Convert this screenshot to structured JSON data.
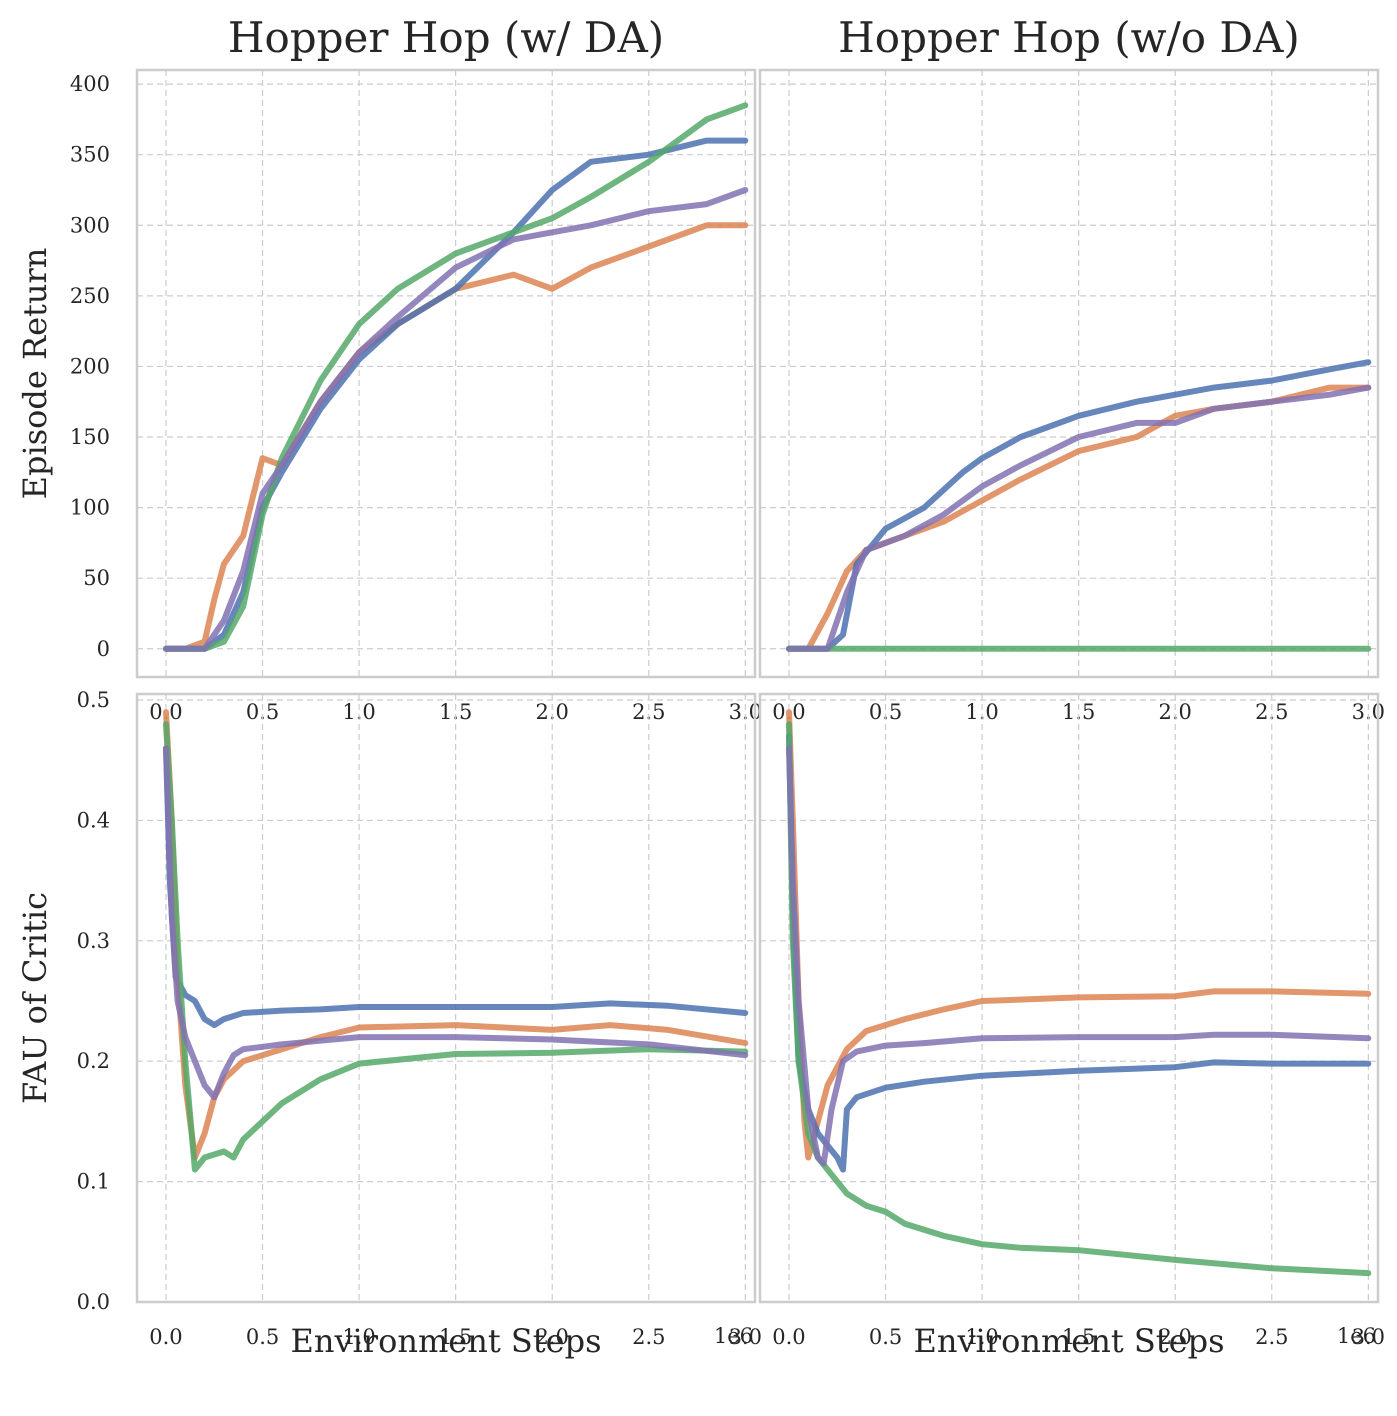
{
  "chart_data": [
    {
      "type": "line",
      "title": "Hopper Hop (w/ DA)",
      "ylabel": "Episode Return",
      "xlabel": "",
      "xlim": [
        -0.15,
        3.05
      ],
      "ylim": [
        -20,
        410
      ],
      "xticks": [
        0.0,
        0.5,
        1.0,
        1.5,
        2.0,
        2.5,
        3.0
      ],
      "xtick_labels": [
        "0.0",
        "0.5",
        "1.0",
        "1.5",
        "2.0",
        "2.5",
        "3.0"
      ],
      "yticks": [
        0,
        50,
        100,
        150,
        200,
        250,
        300,
        350,
        400
      ],
      "ytick_labels": [
        "0",
        "50",
        "100",
        "150",
        "200",
        "250",
        "300",
        "350",
        "400"
      ],
      "grid": true,
      "series": [
        {
          "color": "#dd8452",
          "x": [
            0,
            0.1,
            0.2,
            0.25,
            0.3,
            0.4,
            0.5,
            0.6,
            0.8,
            1.0,
            1.2,
            1.5,
            1.8,
            2.0,
            2.2,
            2.5,
            2.8,
            3.0
          ],
          "y": [
            0,
            0,
            5,
            35,
            60,
            80,
            135,
            130,
            175,
            210,
            230,
            255,
            265,
            255,
            270,
            285,
            300,
            300
          ]
        },
        {
          "color": "#4c72b0",
          "x": [
            0,
            0.1,
            0.2,
            0.3,
            0.4,
            0.5,
            0.6,
            0.8,
            1.0,
            1.2,
            1.5,
            1.8,
            2.0,
            2.2,
            2.5,
            2.8,
            3.0
          ],
          "y": [
            0,
            0,
            0,
            10,
            40,
            100,
            125,
            170,
            205,
            230,
            255,
            295,
            325,
            345,
            350,
            360,
            360
          ]
        },
        {
          "color": "#55a868",
          "x": [
            0,
            0.1,
            0.2,
            0.3,
            0.4,
            0.5,
            0.6,
            0.8,
            1.0,
            1.2,
            1.5,
            1.8,
            2.0,
            2.2,
            2.5,
            2.8,
            3.0
          ],
          "y": [
            0,
            0,
            0,
            5,
            30,
            95,
            135,
            190,
            230,
            255,
            280,
            295,
            305,
            320,
            345,
            375,
            385
          ]
        },
        {
          "color": "#8172b3",
          "x": [
            0,
            0.1,
            0.2,
            0.3,
            0.4,
            0.5,
            0.6,
            0.8,
            1.0,
            1.2,
            1.5,
            1.8,
            2.0,
            2.2,
            2.5,
            2.8,
            3.0
          ],
          "y": [
            0,
            0,
            0,
            20,
            55,
            110,
            130,
            175,
            210,
            235,
            270,
            290,
            295,
            300,
            310,
            315,
            325
          ]
        }
      ]
    },
    {
      "type": "line",
      "title": "Hopper Hop (w/o DA)",
      "ylabel": "",
      "xlabel": "",
      "xlim": [
        -0.15,
        3.05
      ],
      "ylim": [
        -20,
        410
      ],
      "xticks": [
        0.0,
        0.5,
        1.0,
        1.5,
        2.0,
        2.5,
        3.0
      ],
      "xtick_labels": [
        "0.0",
        "0.5",
        "1.0",
        "1.5",
        "2.0",
        "2.5",
        "3.0"
      ],
      "yticks": [
        0,
        50,
        100,
        150,
        200,
        250,
        300,
        350,
        400
      ],
      "ytick_labels": [],
      "grid": true,
      "series": [
        {
          "color": "#dd8452",
          "x": [
            0,
            0.1,
            0.2,
            0.3,
            0.4,
            0.6,
            0.8,
            1.0,
            1.2,
            1.5,
            1.8,
            2.0,
            2.2,
            2.5,
            2.8,
            3.0
          ],
          "y": [
            0,
            0,
            25,
            55,
            70,
            80,
            90,
            105,
            120,
            140,
            150,
            165,
            170,
            175,
            185,
            185
          ]
        },
        {
          "color": "#4c72b0",
          "x": [
            0,
            0.1,
            0.2,
            0.28,
            0.35,
            0.5,
            0.7,
            0.9,
            1.0,
            1.2,
            1.5,
            1.8,
            2.0,
            2.2,
            2.5,
            2.8,
            3.0
          ],
          "y": [
            0,
            0,
            0,
            10,
            60,
            85,
            100,
            125,
            135,
            150,
            165,
            175,
            180,
            185,
            190,
            198,
            203
          ]
        },
        {
          "color": "#55a868",
          "x": [
            0,
            0.5,
            1.0,
            1.5,
            2.0,
            2.5,
            3.0
          ],
          "y": [
            0,
            0,
            0,
            0,
            0,
            0,
            0
          ]
        },
        {
          "color": "#8172b3",
          "x": [
            0,
            0.1,
            0.2,
            0.3,
            0.4,
            0.6,
            0.8,
            1.0,
            1.2,
            1.5,
            1.8,
            2.0,
            2.2,
            2.5,
            2.8,
            3.0
          ],
          "y": [
            0,
            0,
            0,
            40,
            70,
            80,
            95,
            115,
            130,
            150,
            160,
            160,
            170,
            175,
            180,
            185
          ]
        }
      ]
    },
    {
      "type": "line",
      "title": "",
      "ylabel": "FAU of Critic",
      "xlabel": "Environment Steps",
      "x_offset_label": "1e6",
      "xlim": [
        -0.15,
        3.05
      ],
      "ylim": [
        0.0,
        0.505
      ],
      "xticks": [
        0.0,
        0.5,
        1.0,
        1.5,
        2.0,
        2.5,
        3.0
      ],
      "xtick_labels": [
        "0.0",
        "0.5",
        "1.0",
        "1.5",
        "2.0",
        "2.5",
        "3.0"
      ],
      "yticks": [
        0.0,
        0.1,
        0.2,
        0.3,
        0.4,
        0.5
      ],
      "ytick_labels": [
        "0.0",
        "0.1",
        "0.2",
        "0.3",
        "0.4",
        "0.5"
      ],
      "grid": true,
      "series": [
        {
          "color": "#4c72b0",
          "x": [
            0,
            0.02,
            0.05,
            0.1,
            0.15,
            0.2,
            0.25,
            0.3,
            0.4,
            0.6,
            0.8,
            1.0,
            1.5,
            2.0,
            2.3,
            2.6,
            3.0
          ],
          "y": [
            0.46,
            0.35,
            0.27,
            0.255,
            0.25,
            0.235,
            0.23,
            0.235,
            0.24,
            0.242,
            0.243,
            0.245,
            0.245,
            0.245,
            0.248,
            0.246,
            0.24
          ]
        },
        {
          "color": "#dd8452",
          "x": [
            0,
            0.03,
            0.06,
            0.1,
            0.15,
            0.2,
            0.25,
            0.3,
            0.4,
            0.6,
            0.8,
            1.0,
            1.5,
            2.0,
            2.3,
            2.6,
            3.0
          ],
          "y": [
            0.49,
            0.4,
            0.27,
            0.18,
            0.12,
            0.14,
            0.17,
            0.185,
            0.2,
            0.21,
            0.22,
            0.228,
            0.23,
            0.226,
            0.23,
            0.226,
            0.215
          ]
        },
        {
          "color": "#55a868",
          "x": [
            0,
            0.03,
            0.06,
            0.1,
            0.15,
            0.2,
            0.3,
            0.35,
            0.4,
            0.5,
            0.6,
            0.8,
            1.0,
            1.5,
            2.0,
            2.5,
            3.0
          ],
          "y": [
            0.48,
            0.4,
            0.3,
            0.2,
            0.11,
            0.12,
            0.125,
            0.12,
            0.135,
            0.15,
            0.165,
            0.185,
            0.198,
            0.206,
            0.207,
            0.21,
            0.208
          ]
        },
        {
          "color": "#8172b3",
          "x": [
            0,
            0.03,
            0.06,
            0.1,
            0.15,
            0.2,
            0.25,
            0.3,
            0.35,
            0.4,
            0.5,
            0.6,
            0.8,
            1.0,
            1.5,
            2.0,
            2.5,
            3.0
          ],
          "y": [
            0.46,
            0.32,
            0.25,
            0.22,
            0.2,
            0.18,
            0.17,
            0.19,
            0.205,
            0.21,
            0.212,
            0.214,
            0.217,
            0.22,
            0.22,
            0.218,
            0.214,
            0.205
          ]
        }
      ]
    },
    {
      "type": "line",
      "title": "",
      "ylabel": "",
      "xlabel": "Environment Steps",
      "x_offset_label": "1e6",
      "xlim": [
        -0.15,
        3.05
      ],
      "ylim": [
        0.0,
        0.505
      ],
      "xticks": [
        0.0,
        0.5,
        1.0,
        1.5,
        2.0,
        2.5,
        3.0
      ],
      "xtick_labels": [
        "0.0",
        "0.5",
        "1.0",
        "1.5",
        "2.0",
        "2.5",
        "3.0"
      ],
      "yticks": [
        0.0,
        0.1,
        0.2,
        0.3,
        0.4,
        0.5
      ],
      "ytick_labels": [],
      "grid": true,
      "series": [
        {
          "color": "#dd8452",
          "x": [
            0,
            0.02,
            0.05,
            0.08,
            0.1,
            0.15,
            0.2,
            0.3,
            0.4,
            0.6,
            0.8,
            1.0,
            1.5,
            2.0,
            2.2,
            2.5,
            3.0
          ],
          "y": [
            0.49,
            0.4,
            0.25,
            0.15,
            0.12,
            0.15,
            0.18,
            0.21,
            0.225,
            0.235,
            0.243,
            0.25,
            0.253,
            0.254,
            0.258,
            0.258,
            0.256
          ]
        },
        {
          "color": "#4c72b0",
          "x": [
            0,
            0.02,
            0.05,
            0.1,
            0.15,
            0.2,
            0.25,
            0.28,
            0.3,
            0.35,
            0.5,
            0.7,
            1.0,
            1.5,
            2.0,
            2.2,
            2.5,
            3.0
          ],
          "y": [
            0.47,
            0.32,
            0.2,
            0.16,
            0.14,
            0.13,
            0.12,
            0.11,
            0.16,
            0.17,
            0.178,
            0.183,
            0.188,
            0.192,
            0.195,
            0.199,
            0.198,
            0.198
          ]
        },
        {
          "color": "#55a868",
          "x": [
            0,
            0.02,
            0.05,
            0.1,
            0.15,
            0.2,
            0.3,
            0.4,
            0.5,
            0.6,
            0.8,
            1.0,
            1.2,
            1.5,
            2.0,
            2.5,
            3.0
          ],
          "y": [
            0.48,
            0.3,
            0.2,
            0.14,
            0.12,
            0.11,
            0.09,
            0.08,
            0.075,
            0.065,
            0.055,
            0.048,
            0.045,
            0.043,
            0.035,
            0.028,
            0.024
          ]
        },
        {
          "color": "#8172b3",
          "x": [
            0,
            0.02,
            0.05,
            0.1,
            0.15,
            0.18,
            0.22,
            0.28,
            0.35,
            0.5,
            0.7,
            1.0,
            1.5,
            2.0,
            2.2,
            2.5,
            3.0
          ],
          "y": [
            0.46,
            0.35,
            0.25,
            0.16,
            0.12,
            0.115,
            0.16,
            0.2,
            0.208,
            0.213,
            0.215,
            0.219,
            0.22,
            0.22,
            0.222,
            0.222,
            0.219
          ]
        }
      ]
    }
  ]
}
